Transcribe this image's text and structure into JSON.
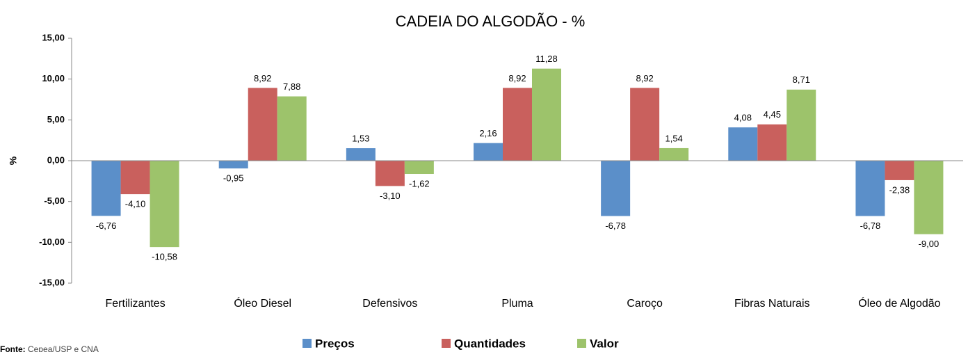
{
  "chart_data": {
    "type": "bar",
    "title": "CADEIA DO ALGODÃO - %",
    "ylabel": "%",
    "categories": [
      "Fertilizantes",
      "Óleo Diesel",
      "Defensivos",
      "Pluma",
      "Caroço",
      "Fibras Naturais",
      "Óleo de Algodão"
    ],
    "series": [
      {
        "name": "Preços",
        "color": "#5b8fc9",
        "values": [
          -6.76,
          -0.95,
          1.53,
          2.16,
          -6.78,
          4.08,
          -6.78
        ],
        "value_labels": [
          "-6,76",
          "-0,95",
          "1,53",
          "2,16",
          "-6,78",
          "4,08",
          "-6,78"
        ]
      },
      {
        "name": "Quantidades",
        "color": "#c9605d",
        "values": [
          -4.1,
          8.92,
          -3.1,
          8.92,
          8.92,
          4.45,
          -2.38
        ],
        "value_labels": [
          "-4,10",
          "8,92",
          "-3,10",
          "8,92",
          "8,92",
          "4,45",
          "-2,38"
        ]
      },
      {
        "name": "Valor",
        "color": "#9dc36b",
        "values": [
          -10.58,
          7.88,
          -1.62,
          11.28,
          1.54,
          8.71,
          -9.0
        ],
        "value_labels": [
          "-10,58",
          "7,88",
          "-1,62",
          "11,28",
          "1,54",
          "8,71",
          "-9,00"
        ]
      }
    ],
    "ylim": [
      -15,
      15
    ],
    "yticks": [
      {
        "value": -15,
        "label": "-15,00"
      },
      {
        "value": -10,
        "label": "-10,00"
      },
      {
        "value": -5,
        "label": "-5,00"
      },
      {
        "value": 0,
        "label": "0,00"
      },
      {
        "value": 5,
        "label": "5,00"
      },
      {
        "value": 10,
        "label": "10,00"
      },
      {
        "value": 15,
        "label": "15,00"
      }
    ],
    "grid": false,
    "legend": "bottom",
    "source_label": "Fonte:",
    "source": "Cepea/USP e CNA"
  }
}
